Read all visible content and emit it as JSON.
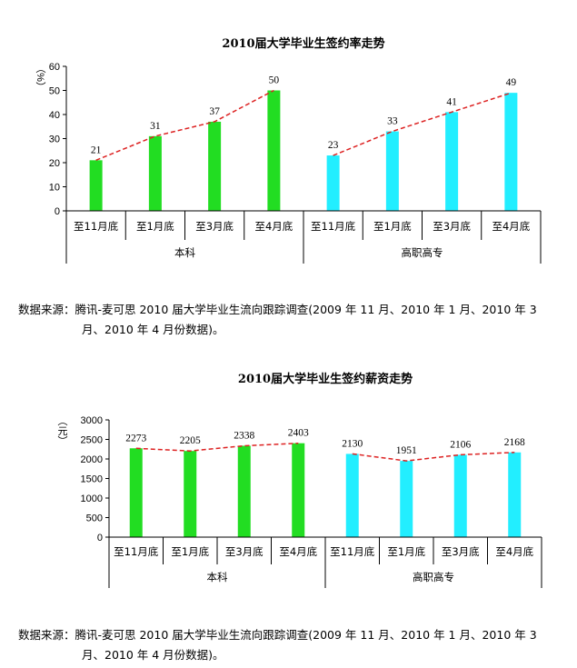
{
  "chart_data": [
    {
      "type": "bar",
      "title": "2010届大学毕业生签约率走势",
      "ylabel": "（%）",
      "ylim": [
        0,
        60
      ],
      "yticks": [
        0,
        10,
        20,
        30,
        40,
        50,
        60
      ],
      "groups": [
        "本科",
        "高职高专"
      ],
      "categories": [
        "至11月底",
        "至1月底",
        "至3月底",
        "至4月底",
        "至11月底",
        "至1月底",
        "至3月底",
        "至4月底"
      ],
      "values": [
        21,
        31,
        37,
        50,
        23,
        33,
        41,
        49
      ],
      "bar_colors": [
        "#22dd22",
        "#22dd22",
        "#22dd22",
        "#22dd22",
        "#22eeff",
        "#22eeff",
        "#22eeff",
        "#22eeff"
      ],
      "trend_color": "#dd2222"
    },
    {
      "type": "bar",
      "title": "2010届大学毕业生签约薪资走势",
      "ylabel": "（元）",
      "ylim": [
        0,
        3000
      ],
      "yticks": [
        0,
        500,
        1000,
        1500,
        2000,
        2500,
        3000
      ],
      "groups": [
        "本科",
        "高职高专"
      ],
      "categories": [
        "至11月底",
        "至1月底",
        "至3月底",
        "至4月底",
        "至11月底",
        "至1月底",
        "至3月底",
        "至4月底"
      ],
      "values": [
        2273,
        2205,
        2338,
        2403,
        2130,
        1951,
        2106,
        2168
      ],
      "bar_colors": [
        "#22dd22",
        "#22dd22",
        "#22dd22",
        "#22dd22",
        "#22eeff",
        "#22eeff",
        "#22eeff",
        "#22eeff"
      ],
      "trend_color": "#dd2222"
    }
  ],
  "notes": [
    {
      "line1": "数据来源：腾讯-麦可思 2010 届大学毕业生流向跟踪调查(2009 年 11 月、2010 年 1 月、2010 年 3",
      "line2": "月、2010 年 4 月份数据)。"
    },
    {
      "line1": "数据来源：腾讯-麦可思 2010 届大学毕业生流向跟踪调查(2009 年 11 月、2010 年 1 月、2010 年 3",
      "line2": "月、2010 年 4 月份数据)。"
    }
  ]
}
